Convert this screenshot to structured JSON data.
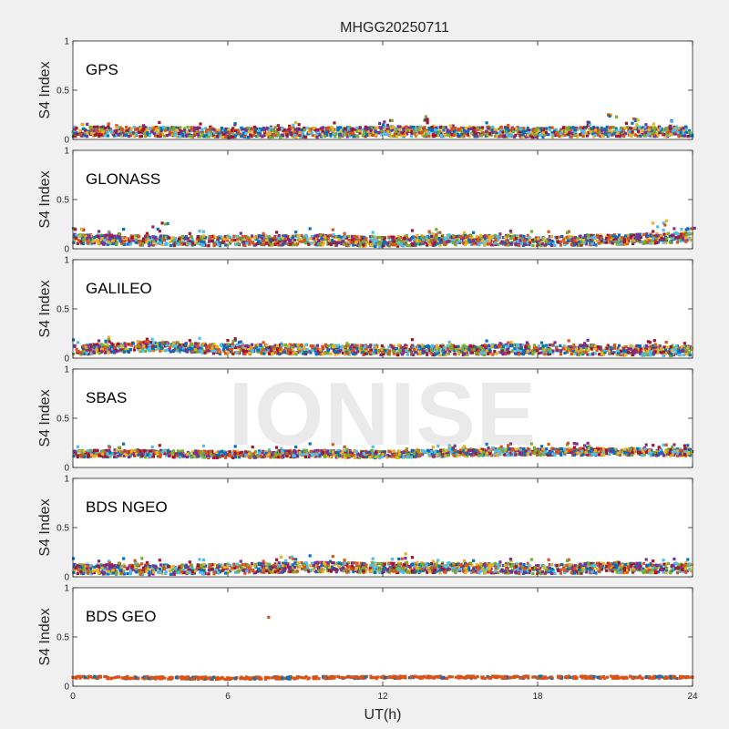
{
  "figure": {
    "title": "MHGG20250711",
    "watermark": "IONISE",
    "xlabel": "UT(h)",
    "ylabel": "S4 Index"
  },
  "chart_data": {
    "type": "scatter",
    "title": "MHGG20250711",
    "xlabel": "UT(h)",
    "xlim": [
      0,
      24
    ],
    "xticks": [
      0,
      6,
      12,
      18,
      24
    ],
    "ylim": [
      0,
      1
    ],
    "yticks": [
      0,
      0.5,
      1
    ],
    "grid": false,
    "colors": [
      "#0072bd",
      "#d95319",
      "#edb120",
      "#7e2f8e",
      "#77ac30",
      "#4dbeee",
      "#a2142f"
    ],
    "panels": [
      {
        "label": "GPS",
        "ylabel": "S4 Index",
        "baseline": [
          [
            0,
            0.08
          ],
          [
            3,
            0.08
          ],
          [
            6,
            0.07
          ],
          [
            9,
            0.07
          ],
          [
            12,
            0.08
          ],
          [
            15,
            0.08
          ],
          [
            18,
            0.07
          ],
          [
            21,
            0.08
          ],
          [
            24,
            0.08
          ]
        ],
        "highlights": [
          [
            0.5,
            0.17
          ],
          [
            2.8,
            0.15
          ],
          [
            7.5,
            0.12
          ],
          [
            12.1,
            0.2
          ],
          [
            13.9,
            0.26
          ],
          [
            20.9,
            0.28
          ],
          [
            21.7,
            0.22
          ],
          [
            23.4,
            0.16
          ]
        ]
      },
      {
        "label": "GLONASS",
        "ylabel": "S4 Index",
        "baseline": [
          [
            0,
            0.1
          ],
          [
            3,
            0.08
          ],
          [
            6,
            0.08
          ],
          [
            9,
            0.09
          ],
          [
            12,
            0.07
          ],
          [
            15,
            0.09
          ],
          [
            18,
            0.08
          ],
          [
            21,
            0.09
          ],
          [
            24,
            0.12
          ]
        ],
        "highlights": [
          [
            0.2,
            0.26
          ],
          [
            2.1,
            0.14
          ],
          [
            3.4,
            0.27
          ],
          [
            9.8,
            0.2
          ],
          [
            14.1,
            0.2
          ],
          [
            22.7,
            0.29
          ],
          [
            23.8,
            0.26
          ]
        ]
      },
      {
        "label": "GALILEO",
        "ylabel": "S4 Index",
        "baseline": [
          [
            0,
            0.08
          ],
          [
            3,
            0.12
          ],
          [
            6,
            0.09
          ],
          [
            9,
            0.09
          ],
          [
            12,
            0.08
          ],
          [
            15,
            0.08
          ],
          [
            18,
            0.09
          ],
          [
            21,
            0.08
          ],
          [
            24,
            0.07
          ]
        ],
        "highlights": [
          [
            1.4,
            0.22
          ],
          [
            2.5,
            0.18
          ],
          [
            6.4,
            0.2
          ],
          [
            17.4,
            0.17
          ],
          [
            22.4,
            0.18
          ]
        ]
      },
      {
        "label": "SBAS",
        "ylabel": "S4 Index",
        "baseline": [
          [
            0,
            0.14
          ],
          [
            3,
            0.14
          ],
          [
            6,
            0.13
          ],
          [
            9,
            0.14
          ],
          [
            12,
            0.13
          ],
          [
            15,
            0.15
          ],
          [
            18,
            0.16
          ],
          [
            21,
            0.16
          ],
          [
            24,
            0.15
          ]
        ],
        "highlights": [
          [
            14.6,
            0.22
          ],
          [
            19.4,
            0.25
          ],
          [
            23.8,
            0.2
          ]
        ]
      },
      {
        "label": "BDS NGEO",
        "ylabel": "S4 Index",
        "baseline": [
          [
            0,
            0.08
          ],
          [
            3,
            0.07
          ],
          [
            6,
            0.08
          ],
          [
            9,
            0.1
          ],
          [
            12,
            0.09
          ],
          [
            15,
            0.09
          ],
          [
            18,
            0.08
          ],
          [
            21,
            0.09
          ],
          [
            24,
            0.09
          ]
        ],
        "highlights": [
          [
            0.4,
            0.17
          ],
          [
            2.7,
            0.19
          ],
          [
            8.3,
            0.23
          ],
          [
            12.6,
            0.24
          ],
          [
            21.1,
            0.16
          ]
        ]
      },
      {
        "label": "BDS GEO",
        "ylabel": "S4 Index",
        "baseline": [
          [
            0,
            0.09
          ],
          [
            6,
            0.08
          ],
          [
            12,
            0.09
          ],
          [
            18,
            0.09
          ],
          [
            24,
            0.09
          ]
        ],
        "highlights": [
          [
            7.5,
            0.7
          ]
        ]
      }
    ]
  }
}
